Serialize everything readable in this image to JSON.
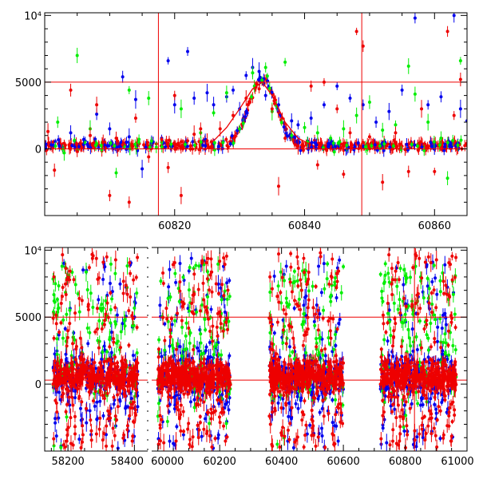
{
  "colors": {
    "blue": "#0000ee",
    "green": "#00ee00",
    "red": "#ee0000",
    "frame": "#000000"
  },
  "chart_data": [
    {
      "type": "scatter",
      "title": "",
      "xlabel": "",
      "ylabel": "",
      "xlim": [
        60800,
        60865
      ],
      "ylim": [
        -5000,
        10200
      ],
      "xticks": [
        60820,
        60840,
        60860
      ],
      "yticks": [
        0,
        5000,
        10000
      ],
      "ytick_labels": [
        "0",
        "5000",
        "10⁴"
      ],
      "hlines": [
        5000,
        0
      ],
      "vlines": [
        60817.5,
        60848.8
      ],
      "model_curve": {
        "name": "fit",
        "color": "red",
        "x": [
          60826,
          60828,
          60830,
          60832,
          60833.5,
          60835,
          60837,
          60839,
          60841
        ],
        "y": [
          600,
          1600,
          3000,
          4500,
          5000,
          4000,
          2000,
          800,
          300
        ]
      },
      "series": [
        {
          "name": "blue",
          "color": "blue",
          "points": [
            [
              60801,
              300
            ],
            [
              60804,
              1200
            ],
            [
              60806,
              700
            ],
            [
              60808,
              2600
            ],
            [
              60810,
              1500
            ],
            [
              60812,
              5400
            ],
            [
              60813,
              900
            ],
            [
              60814,
              3700
            ],
            [
              60815,
              -1500
            ],
            [
              60818,
              800
            ],
            [
              60819,
              6600
            ],
            [
              60820,
              3300
            ],
            [
              60822,
              7300
            ],
            [
              60823,
              3800
            ],
            [
              60825,
              4200
            ],
            [
              60826,
              3300
            ],
            [
              60828,
              3900
            ],
            [
              60829,
              4400
            ],
            [
              60830,
              3000
            ],
            [
              60831,
              5500
            ],
            [
              60832,
              6100
            ],
            [
              60833,
              5800
            ],
            [
              60834,
              4000
            ],
            [
              60836,
              3300
            ],
            [
              60838,
              2100
            ],
            [
              60839,
              1800
            ],
            [
              60841,
              2300
            ],
            [
              60843,
              3300
            ],
            [
              60845,
              4700
            ],
            [
              60847,
              3800
            ],
            [
              60849,
              3300
            ],
            [
              60851,
              2000
            ],
            [
              60853,
              2800
            ],
            [
              60855,
              4400
            ],
            [
              60857,
              9800
            ],
            [
              60859,
              3300
            ],
            [
              60861,
              3900
            ],
            [
              60863,
              10000
            ],
            [
              60864,
              3000
            ],
            [
              60865,
              2100
            ]
          ]
        },
        {
          "name": "green",
          "color": "green",
          "points": [
            [
              60802,
              2000
            ],
            [
              60803,
              -300
            ],
            [
              60805,
              7000
            ],
            [
              60807,
              1500
            ],
            [
              60811,
              -1800
            ],
            [
              60813,
              4400
            ],
            [
              60816,
              3800
            ],
            [
              60818,
              500
            ],
            [
              60821,
              3000
            ],
            [
              60824,
              1200
            ],
            [
              60826,
              2700
            ],
            [
              60828,
              4200
            ],
            [
              60830,
              1500
            ],
            [
              60832,
              5700
            ],
            [
              60834,
              6100
            ],
            [
              60835,
              2800
            ],
            [
              60837,
              6500
            ],
            [
              60838,
              1000
            ],
            [
              60840,
              1600
            ],
            [
              60842,
              1200
            ],
            [
              60844,
              800
            ],
            [
              60846,
              1500
            ],
            [
              60848,
              2500
            ],
            [
              60850,
              3500
            ],
            [
              60852,
              1400
            ],
            [
              60854,
              1800
            ],
            [
              60856,
              6200
            ],
            [
              60857,
              4100
            ],
            [
              60859,
              2000
            ],
            [
              60861,
              800
            ],
            [
              60862,
              -2200
            ],
            [
              60864,
              6600
            ]
          ]
        },
        {
          "name": "red",
          "color": "red",
          "points": [
            [
              60800.5,
              1300
            ],
            [
              60801.5,
              -1600
            ],
            [
              60803,
              400
            ],
            [
              60804,
              4400
            ],
            [
              60805,
              -200
            ],
            [
              60807,
              1000
            ],
            [
              60808,
              3300
            ],
            [
              60809,
              500
            ],
            [
              60810,
              -3500
            ],
            [
              60811,
              800
            ],
            [
              60812,
              300
            ],
            [
              60813,
              -4000
            ],
            [
              60814,
              2300
            ],
            [
              60816,
              -600
            ],
            [
              60818,
              700
            ],
            [
              60819,
              -1400
            ],
            [
              60820,
              4000
            ],
            [
              60821,
              -3500
            ],
            [
              60822,
              600
            ],
            [
              60823,
              1100
            ],
            [
              60824,
              1500
            ],
            [
              60825,
              600
            ],
            [
              60827,
              1500
            ],
            [
              60829,
              2500
            ],
            [
              60831,
              3800
            ],
            [
              60833,
              4500
            ],
            [
              60835,
              3000
            ],
            [
              60836,
              -2800
            ],
            [
              60837,
              800
            ],
            [
              60839,
              200
            ],
            [
              60841,
              4700
            ],
            [
              60842,
              -1200
            ],
            [
              60843,
              5000
            ],
            [
              60845,
              3000
            ],
            [
              60846,
              -1900
            ],
            [
              60847,
              1200
            ],
            [
              60848,
              8800
            ],
            [
              60849,
              7700
            ],
            [
              60850,
              900
            ],
            [
              60852,
              -2500
            ],
            [
              60854,
              1200
            ],
            [
              60856,
              -1700
            ],
            [
              60858,
              3000
            ],
            [
              60860,
              -1700
            ],
            [
              60862,
              8800
            ],
            [
              60863,
              2500
            ],
            [
              60864,
              5200
            ]
          ]
        }
      ]
    },
    {
      "type": "scatter",
      "title": "",
      "xlabel": "",
      "ylabel": "",
      "xlim": [
        58130,
        61000
      ],
      "ylim": [
        -5000,
        10200
      ],
      "xticks": [
        58200,
        58400,
        60000,
        60200,
        60400,
        60600,
        60800,
        61000
      ],
      "x_break": [
        58440,
        59980
      ],
      "yticks": [
        0,
        5000,
        10000
      ],
      "ytick_labels": [
        "0",
        "5000",
        "10⁴"
      ],
      "hlines": [
        5000,
        300
      ],
      "vlines": [
        60830
      ],
      "seasons": [
        {
          "start": 58155,
          "end": 58410
        },
        {
          "start": 60000,
          "end": 60235
        },
        {
          "start": 60360,
          "end": 60600
        },
        {
          "start": 60720,
          "end": 60965
        }
      ],
      "series": [
        {
          "name": "blue",
          "color": "blue",
          "spread": 2300,
          "outlier_max": 9500
        },
        {
          "name": "green",
          "color": "green",
          "spread": 2200,
          "outlier_max": 9000
        },
        {
          "name": "red",
          "color": "red",
          "spread": 2000,
          "outlier_max": 9800
        }
      ]
    }
  ]
}
